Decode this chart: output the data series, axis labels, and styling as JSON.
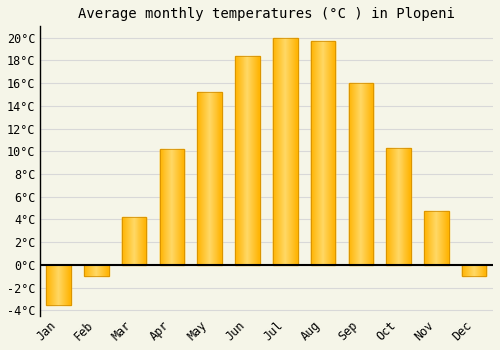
{
  "months": [
    "Jan",
    "Feb",
    "Mar",
    "Apr",
    "May",
    "Jun",
    "Jul",
    "Aug",
    "Sep",
    "Oct",
    "Nov",
    "Dec"
  ],
  "values": [
    -3.5,
    -1.0,
    4.2,
    10.2,
    15.2,
    18.4,
    20.0,
    19.7,
    16.0,
    10.3,
    4.7,
    -1.0
  ],
  "bar_color_main": "#FFB300",
  "bar_color_light": "#FFD966",
  "bar_edge_color": "#CC8800",
  "title": "Average monthly temperatures (°C ) in Plopeni",
  "ylim": [
    -4.5,
    21
  ],
  "yticks": [
    -4,
    -2,
    0,
    2,
    4,
    6,
    8,
    10,
    12,
    14,
    16,
    18,
    20
  ],
  "ytick_labels": [
    "-4°C",
    "-2°C",
    "0°C",
    "2°C",
    "4°C",
    "6°C",
    "8°C",
    "10°C",
    "12°C",
    "14°C",
    "16°C",
    "18°C",
    "20°C"
  ],
  "background_color": "#f5f5e8",
  "plot_bg_color": "#f5f5e8",
  "grid_color": "#d8d8d8",
  "title_fontsize": 10,
  "tick_fontsize": 8.5,
  "bar_width": 0.65
}
